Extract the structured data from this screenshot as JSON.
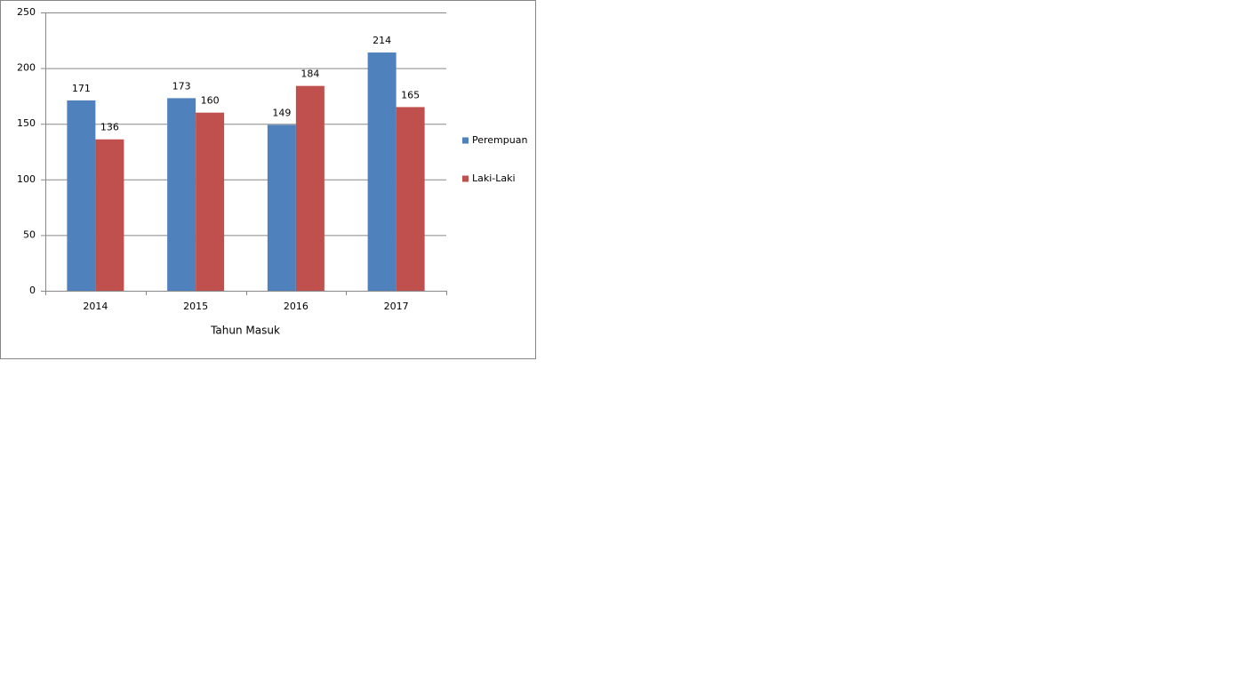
{
  "chart_data": {
    "type": "bar",
    "x_label": "Tahun Masuk",
    "categories": [
      "2014",
      "2015",
      "2016",
      "2017"
    ],
    "series": [
      {
        "name": "Perempuan",
        "color": "#4f81bd",
        "values": [
          171,
          173,
          149,
          214
        ]
      },
      {
        "name": "Laki-Laki",
        "color": "#c0504d",
        "values": [
          136,
          160,
          184,
          165
        ]
      }
    ],
    "ylim": [
      0,
      250
    ],
    "yticks": [
      0,
      50,
      100,
      150,
      200,
      250
    ],
    "grid": true,
    "legend": "right"
  }
}
